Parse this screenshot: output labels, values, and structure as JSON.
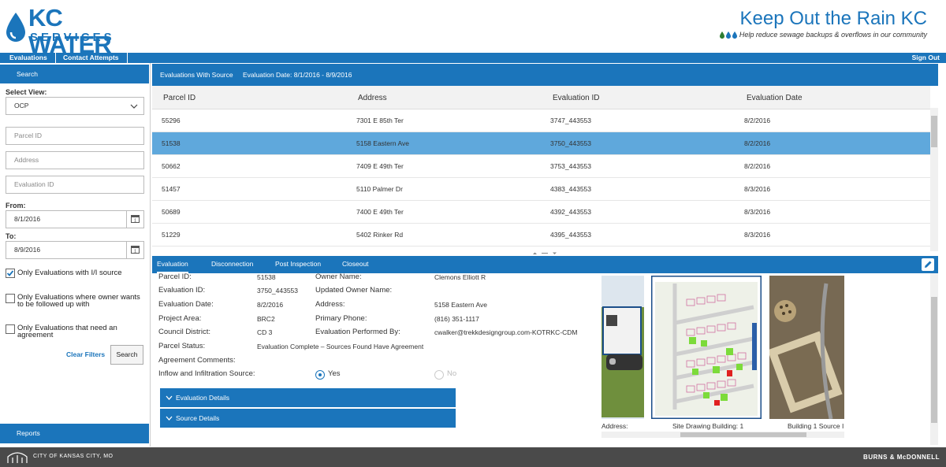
{
  "brand": {
    "logo_top": "KC WATER",
    "logo_bottom": "SERVICES"
  },
  "campaign": {
    "title": "Keep Out the Rain KC",
    "tagline": "Help reduce sewage backups & overflows in our community"
  },
  "topnav": {
    "tabs": [
      "Evaluations",
      "Contact Attempts"
    ],
    "sign_out": "Sign Out"
  },
  "sidebar": {
    "search_label": "Search",
    "select_view_label": "Select View:",
    "select_view_value": "OCP",
    "parcel_id_placeholder": "Parcel ID",
    "address_placeholder": "Address",
    "evaluation_id_placeholder": "Evaluation ID",
    "from_label": "From:",
    "from_value": "8/1/2016",
    "to_label": "To:",
    "to_value": "8/9/2016",
    "checkboxes": [
      {
        "label": "Only Evaluations with I/I source",
        "checked": true
      },
      {
        "label": "Only Evaluations where owner wants to be followed up with",
        "checked": false
      },
      {
        "label": "Only Evaluations that need an agreement",
        "checked": false
      }
    ],
    "clear_filters": "Clear Filters",
    "search_button": "Search",
    "reports_label": "Reports"
  },
  "grid": {
    "title": "Evaluations With Source",
    "date_range": "Evaluation Date: 8/1/2016 - 8/9/2016",
    "columns": [
      "Parcel ID",
      "Address",
      "Evaluation ID",
      "Evaluation Date"
    ],
    "rows": [
      {
        "parcel_id": "55296",
        "address": "7301 E 85th Ter",
        "evaluation_id": "3747_443553",
        "date": "8/2/2016"
      },
      {
        "parcel_id": "51538",
        "address": "5158 Eastern Ave",
        "evaluation_id": "3750_443553",
        "date": "8/2/2016"
      },
      {
        "parcel_id": "50662",
        "address": "7409 E 49th Ter",
        "evaluation_id": "3753_443553",
        "date": "8/2/2016"
      },
      {
        "parcel_id": "51457",
        "address": "5110 Palmer Dr",
        "evaluation_id": "4383_443553",
        "date": "8/3/2016"
      },
      {
        "parcel_id": "50689",
        "address": "7400 E 49th Ter",
        "evaluation_id": "4392_443553",
        "date": "8/3/2016"
      },
      {
        "parcel_id": "51229",
        "address": "5402 Rinker Rd",
        "evaluation_id": "4395_443553",
        "date": "8/3/2016"
      }
    ],
    "selected_row": 1
  },
  "detail_tabs": {
    "tabs": [
      "Evaluation",
      "Disconnection",
      "Post Inspection",
      "Closeout"
    ],
    "active": 0
  },
  "detail": {
    "parcel_id_label": "Parcel ID:",
    "parcel_id": "51538",
    "evaluation_id_label": "Evaluation ID:",
    "evaluation_id": "3750_443553",
    "evaluation_date_label": "Evaluation Date:",
    "evaluation_date": "8/2/2016",
    "project_area_label": "Project Area:",
    "project_area": "BRC2",
    "council_district_label": "Council District:",
    "council_district": "CD 3",
    "parcel_status_label": "Parcel Status:",
    "parcel_status": "Evaluation Complete – Sources Found Have Agreement",
    "agreement_comments_label": "Agreement Comments:",
    "owner_name_label": "Owner Name:",
    "owner_name": "Clemons Elliott R",
    "updated_owner_name_label": "Updated Owner Name:",
    "address_label": "Address:",
    "address": "5158 Eastern Ave",
    "primary_phone_label": "Primary Phone:",
    "primary_phone": "(816) 351-1117",
    "performed_by_label": "Evaluation Performed By:",
    "performed_by": "cwalker@trekkdesigngroup.com-KOTRKC-CDM",
    "ii_source_label": "Inflow and Infiltration Source:",
    "yes_label": "Yes",
    "no_label": "No",
    "sections": [
      "Evaluation Details",
      "Source Details"
    ]
  },
  "photos": {
    "captions": [
      "Address:",
      "Site Drawing Building: 1",
      "Building 1 Source I"
    ]
  },
  "footer": {
    "city": "CITY OF KANSAS CITY, MO",
    "partner": "BURNS & McDONNELL"
  },
  "colors": {
    "primary": "#1b75bb",
    "selected_row": "#5fa8dc",
    "footer": "#4a4a4a"
  }
}
